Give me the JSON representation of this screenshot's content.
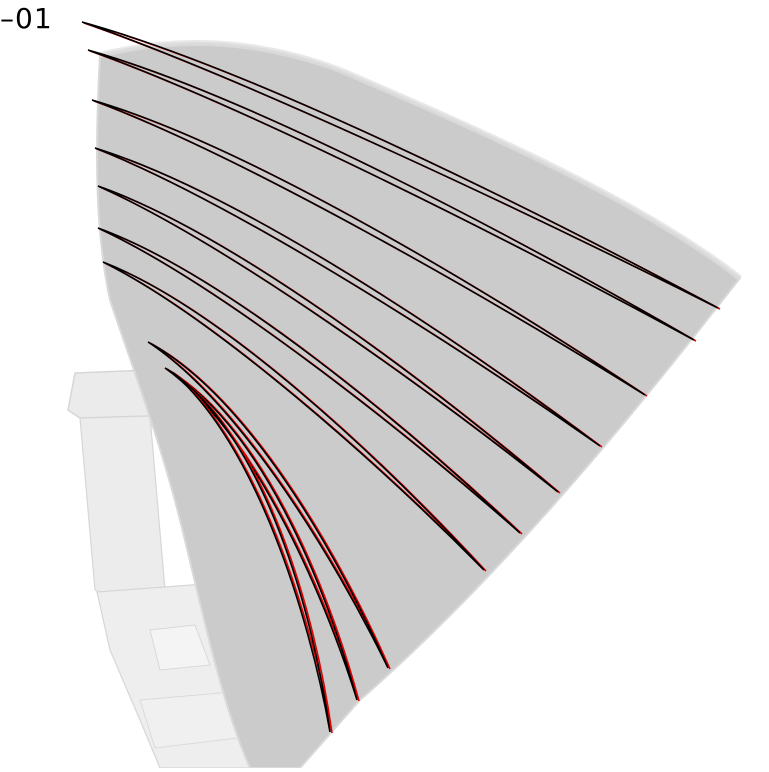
{
  "label": {
    "text": "–01"
  },
  "colors": {
    "background": "#ffffff",
    "blade_surface": "#cbcbcb",
    "blade_edge": "#d8d8d8",
    "hub_body": "#e4e4e4",
    "hub_edge": "#c8c8c8",
    "section_reference": "#000000",
    "section_computed": "#e00000"
  },
  "legend_items": [],
  "section_count": 10
}
